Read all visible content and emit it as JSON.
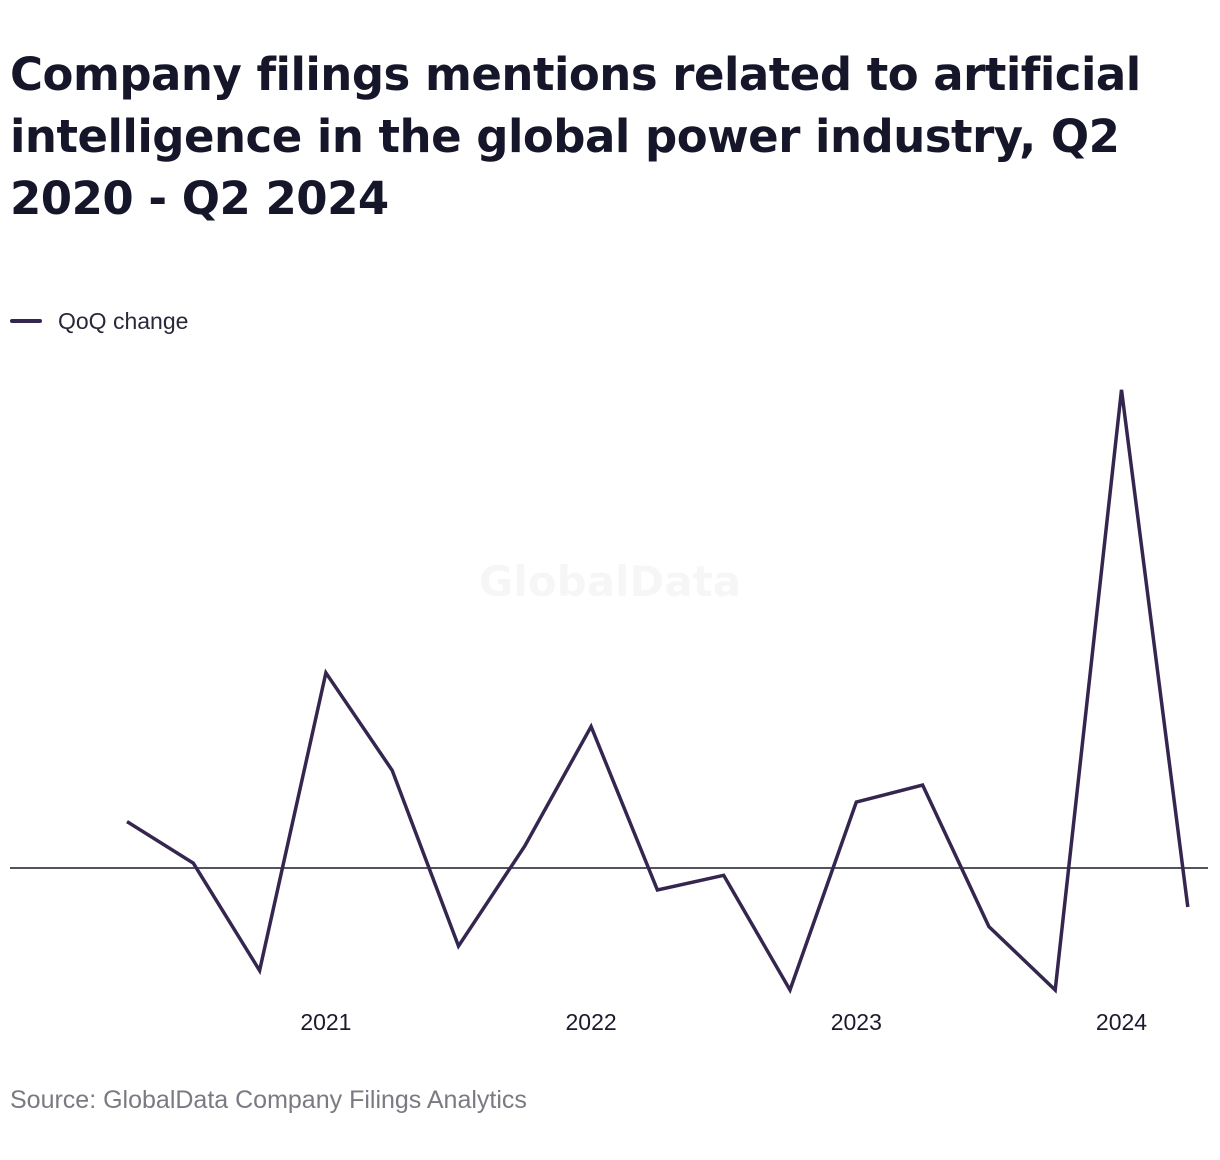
{
  "watermark": "GlobalData",
  "source": "Source: GlobalData Company Filings Analytics",
  "colors": {
    "line": "#35264f",
    "zero_line": "#1b1a2e"
  },
  "chart_data": {
    "type": "line",
    "title": "Company filings mentions related to artificial intelligence in the global power industry, Q2 2020 - Q2 2024",
    "xlabel": "",
    "ylabel": "",
    "x": [
      "Q2 2020",
      "Q3 2020",
      "Q4 2020",
      "Q1 2021",
      "Q2 2021",
      "Q3 2021",
      "Q4 2021",
      "Q1 2022",
      "Q2 2022",
      "Q3 2022",
      "Q4 2022",
      "Q1 2023",
      "Q2 2023",
      "Q3 2023",
      "Q4 2023",
      "Q1 2024",
      "Q2 2024"
    ],
    "x_tick_labels": [
      "2021",
      "2022",
      "2023",
      "2024"
    ],
    "x_tick_positions": [
      "Q1 2021",
      "Q1 2022",
      "Q1 2023",
      "Q1 2024"
    ],
    "series": [
      {
        "name": "QoQ change",
        "values": [
          19,
          2,
          -42,
          80,
          40,
          -32,
          9,
          58,
          -9,
          -3,
          -50,
          27,
          34,
          -24,
          -50,
          196,
          -16
        ]
      }
    ],
    "ylim": [
      -80,
      240
    ],
    "zero_line": true,
    "grid": false,
    "legend": "top-left"
  }
}
